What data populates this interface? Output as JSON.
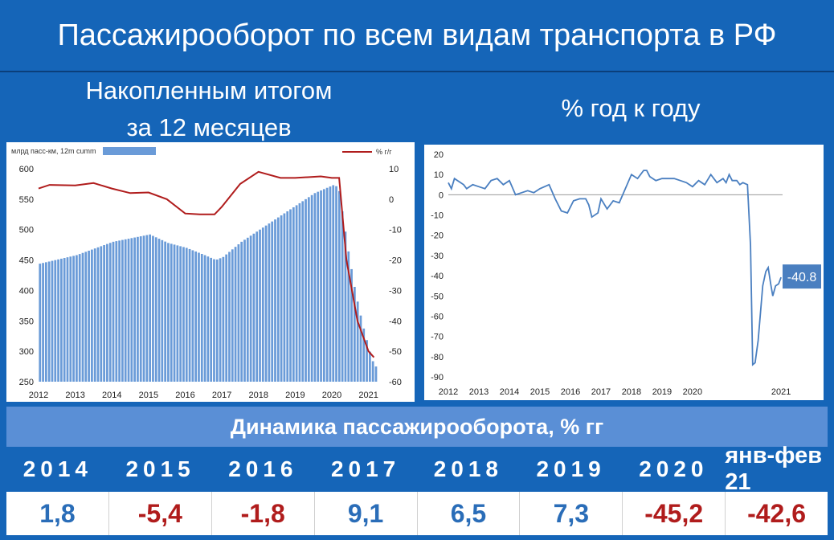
{
  "title": "Пассажирооборот по всем видам транспорта в РФ",
  "left_subtitle": [
    "Накопленным итогом",
    "за 12 месяцев"
  ],
  "right_subtitle": "% год к году",
  "colors": {
    "background": "#1565b8",
    "bars": "#6a9bd8",
    "red_line": "#b01c1c",
    "blue_line": "#4a7fc0",
    "positive": "#2a6db8",
    "negative": "#b01c1c"
  },
  "chart_data": [
    {
      "type": "bar",
      "legend_left": "млрд пасс-км, 12m cumm",
      "legend_right": "% г/г",
      "x_tick_labels": [
        "2012",
        "2013",
        "2014",
        "2015",
        "2016",
        "2017",
        "2018",
        "2019",
        "2020",
        "2021"
      ],
      "ylim": [
        250,
        600
      ],
      "y_ticks": [
        250,
        300,
        350,
        400,
        450,
        500,
        550,
        600
      ],
      "y2lim": [
        -60,
        10
      ],
      "y2_ticks": [
        -60,
        -50,
        -40,
        -30,
        -20,
        -10,
        0,
        10
      ],
      "bar_keypoints": [
        [
          2012.0,
          444
        ],
        [
          2013.0,
          458
        ],
        [
          2014.0,
          480
        ],
        [
          2015.0,
          492
        ],
        [
          2015.5,
          478
        ],
        [
          2016.0,
          470
        ],
        [
          2016.5,
          458
        ],
        [
          2016.8,
          450
        ],
        [
          2017.0,
          455
        ],
        [
          2017.5,
          480
        ],
        [
          2018.0,
          500
        ],
        [
          2019.0,
          540
        ],
        [
          2019.5,
          560
        ],
        [
          2020.0,
          573
        ],
        [
          2020.15,
          570
        ],
        [
          2020.4,
          470
        ],
        [
          2020.6,
          400
        ],
        [
          2020.8,
          345
        ],
        [
          2021.05,
          288
        ],
        [
          2021.15,
          275
        ]
      ],
      "line_keypoints": [
        [
          2012.0,
          3.5
        ],
        [
          2012.3,
          4.7
        ],
        [
          2013.0,
          4.5
        ],
        [
          2013.5,
          5.3
        ],
        [
          2014.0,
          3.5
        ],
        [
          2014.5,
          2.0
        ],
        [
          2015.0,
          2.2
        ],
        [
          2015.5,
          0
        ],
        [
          2016.0,
          -4.7
        ],
        [
          2016.4,
          -5.0
        ],
        [
          2016.8,
          -5.0
        ],
        [
          2017.0,
          -2.5
        ],
        [
          2017.5,
          5.0
        ],
        [
          2018.0,
          9.0
        ],
        [
          2018.6,
          7.0
        ],
        [
          2019.0,
          7.0
        ],
        [
          2019.7,
          7.5
        ],
        [
          2020.0,
          7.0
        ],
        [
          2020.2,
          7.0
        ],
        [
          2020.4,
          -20
        ],
        [
          2020.7,
          -40
        ],
        [
          2021.0,
          -50
        ],
        [
          2021.15,
          -52
        ]
      ]
    },
    {
      "type": "line",
      "x_tick_labels": [
        "2012",
        "2013",
        "2014",
        "2015",
        "2016",
        "2017",
        "2018",
        "2019",
        "2020",
        "2021"
      ],
      "ylim": [
        -90,
        20
      ],
      "y_ticks": [
        20,
        10,
        0,
        -10,
        -20,
        -30,
        -40,
        -50,
        -60,
        -70,
        -80,
        -90
      ],
      "last_value_label": "-40.8",
      "keypoints": [
        [
          2012.0,
          6
        ],
        [
          2012.1,
          3
        ],
        [
          2012.2,
          8
        ],
        [
          2012.5,
          5
        ],
        [
          2012.6,
          3
        ],
        [
          2012.8,
          5
        ],
        [
          2013.0,
          4
        ],
        [
          2013.2,
          3
        ],
        [
          2013.4,
          7
        ],
        [
          2013.6,
          8
        ],
        [
          2013.8,
          5
        ],
        [
          2014.0,
          7
        ],
        [
          2014.2,
          0
        ],
        [
          2014.4,
          1
        ],
        [
          2014.6,
          2
        ],
        [
          2014.8,
          1
        ],
        [
          2015.0,
          3
        ],
        [
          2015.3,
          5
        ],
        [
          2015.5,
          -2
        ],
        [
          2015.7,
          -8
        ],
        [
          2015.9,
          -9
        ],
        [
          2016.1,
          -3
        ],
        [
          2016.3,
          -2
        ],
        [
          2016.5,
          -2
        ],
        [
          2016.6,
          -5
        ],
        [
          2016.7,
          -11
        ],
        [
          2016.9,
          -9
        ],
        [
          2017.0,
          -2
        ],
        [
          2017.2,
          -7
        ],
        [
          2017.4,
          -3
        ],
        [
          2017.6,
          -4
        ],
        [
          2017.8,
          3
        ],
        [
          2018.0,
          10
        ],
        [
          2018.2,
          8
        ],
        [
          2018.4,
          12
        ],
        [
          2018.5,
          12
        ],
        [
          2018.6,
          9
        ],
        [
          2018.8,
          7
        ],
        [
          2019.0,
          8
        ],
        [
          2019.2,
          8
        ],
        [
          2019.4,
          8
        ],
        [
          2019.6,
          7
        ],
        [
          2019.8,
          6
        ],
        [
          2020.0,
          4
        ],
        [
          2020.2,
          7
        ],
        [
          2020.4,
          5
        ],
        [
          2020.6,
          10
        ],
        [
          2020.8,
          6
        ],
        [
          2021.0,
          8
        ],
        [
          2021.1,
          6
        ],
        [
          2021.2,
          10
        ],
        [
          2021.3,
          7
        ],
        [
          2021.45,
          7
        ],
        [
          2021.55,
          5
        ],
        [
          2021.65,
          6
        ],
        [
          2021.8,
          5
        ],
        [
          2021.9,
          -25
        ],
        [
          2021.97,
          -84
        ],
        [
          2022.05,
          -83
        ],
        [
          2022.15,
          -72
        ],
        [
          2022.3,
          -45
        ],
        [
          2022.4,
          -38
        ],
        [
          2022.48,
          -36
        ],
        [
          2022.56,
          -44
        ],
        [
          2022.63,
          -50
        ],
        [
          2022.72,
          -45
        ],
        [
          2022.82,
          -44
        ],
        [
          2022.9,
          -40.8
        ]
      ]
    }
  ],
  "table": {
    "title": "Динамика пассажирооборота, % гг",
    "years": [
      "2014",
      "2015",
      "2016",
      "2017",
      "2018",
      "2019",
      "2020",
      "янв-фев 21"
    ],
    "values": [
      "1,8",
      "-5,4",
      "-1,8",
      "9,1",
      "6,5",
      "7,3",
      "-45,2",
      "-42,6"
    ],
    "value_colors": [
      "#2a6db8",
      "#b01c1c",
      "#b01c1c",
      "#2a6db8",
      "#2a6db8",
      "#2a6db8",
      "#b01c1c",
      "#b01c1c"
    ]
  }
}
